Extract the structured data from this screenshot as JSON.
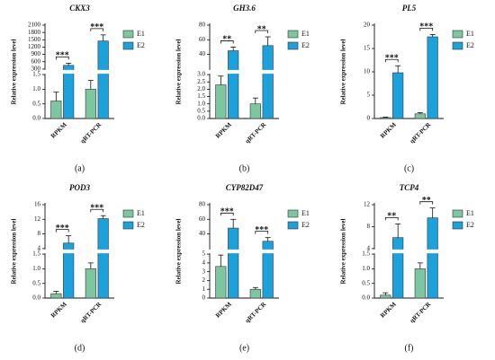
{
  "chart_data": [
    {
      "type": "bar",
      "title": "CKX3",
      "panel_label": "(a)",
      "y_label": "Relative expression level",
      "categories": [
        "RPKM",
        "qRT-PCR"
      ],
      "series": [
        {
          "name": "E1",
          "color": "#7cc79f",
          "values": [
            0.6,
            1.0
          ],
          "errors": [
            0.3,
            0.3
          ]
        },
        {
          "name": "E2",
          "color": "#1ba1db",
          "values": [
            450,
            1450
          ],
          "errors": [
            90,
            250
          ]
        }
      ],
      "segments": [
        {
          "ylim": [
            0,
            1.5
          ],
          "yticks": [
            {
              "value": 0,
              "label": "0.0"
            },
            0.5,
            {
              "value": 1,
              "label": "1.0"
            },
            1.5
          ]
        },
        {
          "ylim": [
            300,
            2100
          ],
          "yticks": [
            300,
            600,
            900,
            1200,
            1500,
            1800,
            2100
          ]
        }
      ],
      "significance": [
        "***",
        "***"
      ]
    },
    {
      "type": "bar",
      "title": "GH3.6",
      "panel_label": "(b)",
      "y_label": "Relative expression level",
      "categories": [
        "RPKM",
        "qRT-PCR"
      ],
      "series": [
        {
          "name": "E1",
          "color": "#7cc79f",
          "values": [
            2.3,
            1.0
          ],
          "errors": [
            0.6,
            0.4
          ]
        },
        {
          "name": "E2",
          "color": "#1ba1db",
          "values": [
            45,
            52
          ],
          "errors": [
            5,
            12
          ]
        }
      ],
      "segments": [
        {
          "ylim": [
            0,
            3
          ],
          "yticks": [
            {
              "value": 0,
              "label": "0.0"
            },
            0.5,
            {
              "value": 1,
              "label": "1.0"
            },
            1.5,
            {
              "value": 2,
              "label": "2.0"
            },
            2.5,
            {
              "value": 3,
              "label": "3.0"
            }
          ]
        },
        {
          "ylim": [
            20,
            80
          ],
          "yticks": [
            40,
            60,
            80
          ]
        }
      ],
      "significance": [
        "**",
        "**"
      ]
    },
    {
      "type": "bar",
      "title": "PL5",
      "panel_label": "(c)",
      "y_label": "Relative expression level",
      "categories": [
        "RPKM",
        "qRT-PCR"
      ],
      "series": [
        {
          "name": "E1",
          "color": "#7cc79f",
          "values": [
            0.2,
            1.0
          ],
          "errors": [
            0.1,
            0.25
          ]
        },
        {
          "name": "E2",
          "color": "#1ba1db",
          "values": [
            9.8,
            17.5
          ],
          "errors": [
            1.5,
            0.5
          ]
        }
      ],
      "segments": [
        {
          "ylim": [
            0,
            20
          ],
          "yticks": [
            0,
            5,
            10,
            15,
            20
          ]
        }
      ],
      "significance": [
        "***",
        "***"
      ]
    },
    {
      "type": "bar",
      "title": "POD3",
      "panel_label": "(d)",
      "y_label": "Relative expression level",
      "categories": [
        "RPKM",
        "qRT-PCR"
      ],
      "series": [
        {
          "name": "E1",
          "color": "#7cc79f",
          "values": [
            0.15,
            1.0
          ],
          "errors": [
            0.08,
            0.2
          ]
        },
        {
          "name": "E2",
          "color": "#1ba1db",
          "values": [
            5.5,
            12.2
          ],
          "errors": [
            2,
            0.8
          ]
        }
      ],
      "segments": [
        {
          "ylim": [
            0,
            1.5
          ],
          "yticks": [
            {
              "value": 0,
              "label": "0.0"
            },
            0.5,
            {
              "value": 1,
              "label": "1.0"
            },
            1.5
          ]
        },
        {
          "ylim": [
            4,
            16
          ],
          "yticks": [
            4,
            8,
            12,
            16
          ]
        }
      ],
      "significance": [
        "***",
        "***"
      ]
    },
    {
      "type": "bar",
      "title": "CYP82D47",
      "panel_label": "(e)",
      "y_label": "Relative expression level",
      "categories": [
        "RPKM",
        "qRT-PCR"
      ],
      "series": [
        {
          "name": "E1",
          "color": "#7cc79f",
          "values": [
            3.6,
            1.0
          ],
          "errors": [
            1.3,
            0.2
          ]
        },
        {
          "name": "E2",
          "color": "#1ba1db",
          "values": [
            48,
            30
          ],
          "errors": [
            12,
            5
          ]
        }
      ],
      "segments": [
        {
          "ylim": [
            0,
            5
          ],
          "yticks": [
            0,
            1,
            2,
            3,
            4,
            5
          ]
        },
        {
          "ylim": [
            20,
            80
          ],
          "yticks": [
            40,
            60,
            80
          ]
        }
      ],
      "significance": [
        "***",
        "***"
      ]
    },
    {
      "type": "bar",
      "title": "TCP4",
      "panel_label": "(f)",
      "y_label": "Relative expression level",
      "categories": [
        "RPKM",
        "qRT-PCR"
      ],
      "series": [
        {
          "name": "E1",
          "color": "#7cc79f",
          "values": [
            0.1,
            1.0
          ],
          "errors": [
            0.08,
            0.2
          ]
        },
        {
          "name": "E2",
          "color": "#1ba1db",
          "values": [
            6,
            9.6
          ],
          "errors": [
            2.5,
            1.8
          ]
        }
      ],
      "segments": [
        {
          "ylim": [
            0,
            1.5
          ],
          "yticks": [
            {
              "value": 0,
              "label": "0.0"
            },
            0.5,
            {
              "value": 1,
              "label": "1.0"
            },
            1.5
          ]
        },
        {
          "ylim": [
            4,
            12
          ],
          "yticks": [
            4,
            8,
            12
          ]
        }
      ],
      "significance": [
        "**",
        "**"
      ]
    }
  ]
}
